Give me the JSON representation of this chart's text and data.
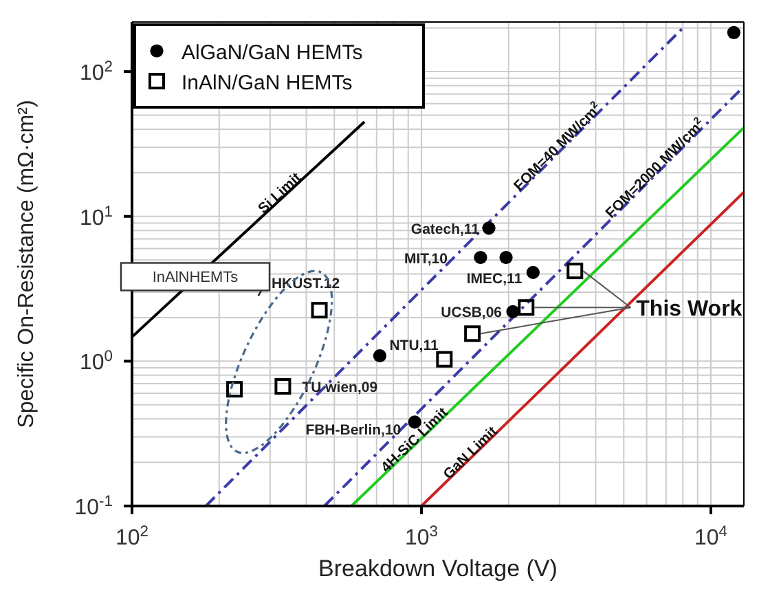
{
  "chart_data": {
    "type": "scatter",
    "xlabel": "Breakdown Voltage (V)",
    "ylabel": "Specific On-Resistance (mΩ·cm²)",
    "xlim": [
      100,
      13000
    ],
    "ylim": [
      0.1,
      220
    ],
    "xticks": [
      {
        "value": 100,
        "label": "10$^{2}$"
      },
      {
        "value": 1000,
        "label": "10$^{3}$"
      },
      {
        "value": 10000,
        "label": "10$^{4}$"
      }
    ],
    "yticks": [
      {
        "value": 0.1,
        "label": "10$^{-1}$"
      },
      {
        "value": 1,
        "label": "10$^{0}$"
      },
      {
        "value": 10,
        "label": "10$^{1}$"
      },
      {
        "value": 100,
        "label": "10$^{2}$"
      }
    ],
    "log": "xy",
    "grid": true,
    "legend": "top left",
    "series": [
      {
        "name": "AlGaN/GaN HEMTs",
        "marker": "circle",
        "color": "#000000",
        "x": [
          12000,
          1710,
          1600,
          1960,
          2430,
          2070,
          718,
          948
        ],
        "values": [
          186,
          8.3,
          5.2,
          5.2,
          4.1,
          2.2,
          1.09,
          0.38
        ]
      },
      {
        "name": "InAlN/GaN HEMTs",
        "marker": "square",
        "color": "#000000",
        "x": [
          444,
          226,
          332,
          1200,
          1500,
          2300,
          3390
        ],
        "values": [
          2.25,
          0.64,
          0.67,
          1.03,
          1.55,
          2.35,
          4.2
        ]
      },
      {
        "name": "Si Limit",
        "type": "line",
        "color": "#000000",
        "line_style": "solid",
        "x": [
          100,
          635
        ],
        "values": [
          1.47,
          45
        ]
      },
      {
        "name": "FOM=40 MW/cm$^{2}$",
        "type": "line",
        "color": "#3a3aa8",
        "line_style": "dashed",
        "x": [
          180,
          8000
        ],
        "values": [
          0.1,
          200
        ]
      },
      {
        "name": "FOM=2000 MW/cm$^{2}$",
        "type": "line",
        "color": "#3a3aa8",
        "line_style": "dashed",
        "x": [
          462,
          13000
        ],
        "values": [
          0.1,
          79
        ]
      },
      {
        "name": "4H-SiC Limit",
        "type": "line",
        "color": "#22cc22",
        "line_style": "solid",
        "x": [
          573,
          13000
        ],
        "values": [
          0.1,
          41
        ]
      },
      {
        "name": "GaN Limit",
        "type": "line",
        "color": "#cc2222",
        "line_style": "solid",
        "x": [
          1000,
          13000
        ],
        "values": [
          0.1,
          14.7
        ]
      }
    ],
    "annotations": [
      {
        "text": "Gatech,11",
        "x": 1710,
        "y": 8.3
      },
      {
        "text": "MIT,10",
        "x": 1600,
        "y": 5.2
      },
      {
        "text": "IMEC,11",
        "x": 2430,
        "y": 4.1
      },
      {
        "text": "UCSB,06",
        "x": 2070,
        "y": 2.2
      },
      {
        "text": "NTU,11",
        "x": 718,
        "y": 1.09
      },
      {
        "text": "HKUST.12",
        "x": 444,
        "y": 2.25
      },
      {
        "text": "TU wien,09",
        "x": 332,
        "y": 0.67
      },
      {
        "text": "FBH-Berlin,10",
        "x": 948,
        "y": 0.38
      },
      {
        "text": "This Work",
        "x": 2300,
        "y": 2.35
      },
      "InAlNHEMTs"
    ]
  }
}
